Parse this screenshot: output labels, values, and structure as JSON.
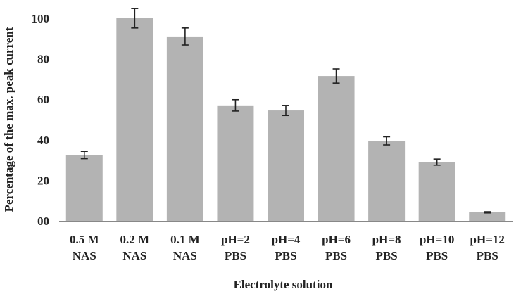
{
  "chart_data": {
    "type": "bar",
    "title": "",
    "xlabel": "Electrolyte solution",
    "ylabel": "Percentage of the max.  peak current",
    "ylim": [
      0,
      100
    ],
    "yticks": [
      "00",
      "20",
      "40",
      "60",
      "80",
      "100"
    ],
    "categories": [
      [
        "0.5 M",
        "NAS"
      ],
      [
        "0.2 M",
        "NAS"
      ],
      [
        "0.1 M",
        "NAS"
      ],
      [
        "pH=2",
        "PBS"
      ],
      [
        "pH=4",
        "PBS"
      ],
      [
        "pH=6",
        "PBS"
      ],
      [
        "pH=8",
        "PBS"
      ],
      [
        "pH=10",
        "PBS"
      ],
      [
        "pH=12",
        "PBS"
      ]
    ],
    "values": [
      32.5,
      100,
      91,
      57,
      54.5,
      71.5,
      39.5,
      29,
      4.2
    ],
    "errors": [
      1.8,
      4.8,
      4.2,
      2.8,
      2.5,
      3.5,
      2.0,
      1.5,
      0.3
    ],
    "bar_color": "#b3b3b3",
    "grid": false,
    "legend": "none"
  }
}
